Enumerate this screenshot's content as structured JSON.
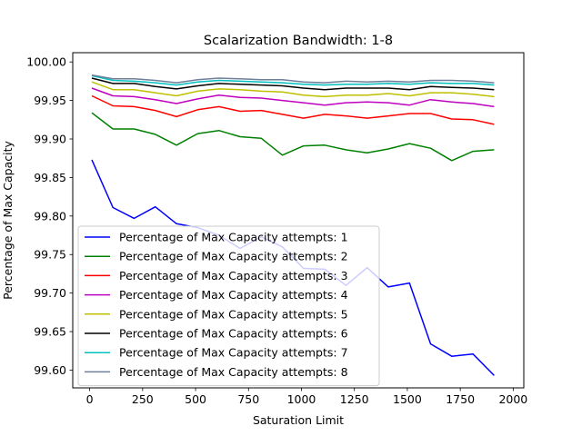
{
  "chart_data": {
    "type": "line",
    "title": "Scalarization Bandwidth: 1-8",
    "xlabel": "Saturation Limit",
    "ylabel": "Percentage of Max Capacity",
    "xlim": [
      -80,
      2050
    ],
    "ylim": [
      99.577,
      100.012
    ],
    "xticks": [
      0,
      250,
      500,
      750,
      1000,
      1250,
      1500,
      1750,
      2000
    ],
    "yticks": [
      99.6,
      99.65,
      99.7,
      99.75,
      99.8,
      99.85,
      99.9,
      99.95,
      100.0
    ],
    "ytick_labels": [
      "99.60",
      "99.65",
      "99.70",
      "99.75",
      "99.80",
      "99.85",
      "99.90",
      "99.95",
      "100.00"
    ],
    "grid": false,
    "legend_position": "lower-left",
    "x": [
      10,
      110,
      210,
      310,
      410,
      510,
      610,
      710,
      810,
      910,
      1010,
      1110,
      1210,
      1310,
      1410,
      1510,
      1610,
      1710,
      1810,
      1910
    ],
    "series": [
      {
        "name": "Percentage of Max Capacity attempts: 1",
        "color": "#0000ff",
        "values": [
          99.873,
          99.811,
          99.797,
          99.812,
          99.79,
          99.785,
          99.775,
          99.758,
          99.773,
          99.76,
          99.732,
          99.731,
          99.71,
          99.733,
          99.708,
          99.713,
          99.634,
          99.618,
          99.621,
          99.593
        ]
      },
      {
        "name": "Percentage of Max Capacity attempts: 2",
        "color": "#008000",
        "values": [
          99.934,
          99.913,
          99.913,
          99.906,
          99.892,
          99.907,
          99.911,
          99.903,
          99.901,
          99.879,
          99.891,
          99.892,
          99.886,
          99.882,
          99.887,
          99.894,
          99.888,
          99.872,
          99.884,
          99.886
        ]
      },
      {
        "name": "Percentage of Max Capacity attempts: 3",
        "color": "#ff0000",
        "values": [
          99.956,
          99.943,
          99.942,
          99.937,
          99.929,
          99.938,
          99.942,
          99.936,
          99.937,
          99.932,
          99.927,
          99.932,
          99.93,
          99.927,
          99.93,
          99.933,
          99.933,
          99.926,
          99.925,
          99.919
        ]
      },
      {
        "name": "Percentage of Max Capacity attempts: 4",
        "color": "#bf00bf",
        "values": [
          99.966,
          99.956,
          99.955,
          99.951,
          99.946,
          99.952,
          99.957,
          99.954,
          99.953,
          99.95,
          99.947,
          99.944,
          99.947,
          99.948,
          99.947,
          99.944,
          99.951,
          99.948,
          99.946,
          99.942
        ]
      },
      {
        "name": "Percentage of Max Capacity attempts: 5",
        "color": "#bfbf00",
        "values": [
          99.974,
          99.964,
          99.964,
          99.96,
          99.956,
          99.962,
          99.965,
          99.964,
          99.962,
          99.961,
          99.957,
          99.955,
          99.957,
          99.957,
          99.959,
          99.956,
          99.96,
          99.96,
          99.958,
          99.955
        ]
      },
      {
        "name": "Percentage of Max Capacity attempts: 6",
        "color": "#000000",
        "values": [
          99.979,
          99.972,
          99.972,
          99.968,
          99.965,
          99.969,
          99.972,
          99.971,
          99.97,
          99.969,
          99.966,
          99.964,
          99.966,
          99.966,
          99.966,
          99.964,
          99.968,
          99.967,
          99.966,
          99.964
        ]
      },
      {
        "name": "Percentage of Max Capacity attempts: 7",
        "color": "#00bfbf",
        "values": [
          99.982,
          99.976,
          99.975,
          99.973,
          99.97,
          99.974,
          99.976,
          99.975,
          99.974,
          99.973,
          99.971,
          99.97,
          99.971,
          99.971,
          99.972,
          99.971,
          99.973,
          99.972,
          99.972,
          99.97
        ]
      },
      {
        "name": "Percentage of Max Capacity attempts: 8",
        "color": "#6e7f9a",
        "values": [
          99.983,
          99.978,
          99.978,
          99.976,
          99.973,
          99.977,
          99.979,
          99.978,
          99.977,
          99.977,
          99.974,
          99.973,
          99.975,
          99.974,
          99.975,
          99.974,
          99.976,
          99.976,
          99.975,
          99.973
        ]
      }
    ]
  }
}
